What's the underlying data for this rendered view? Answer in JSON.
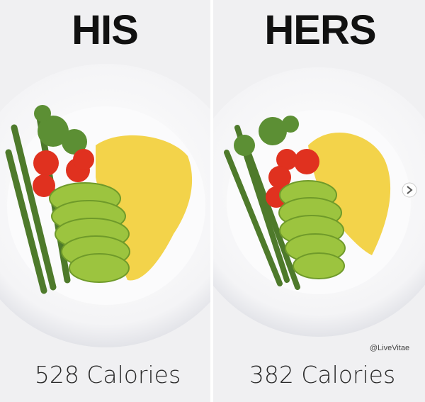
{
  "panels": [
    {
      "title": "HIS",
      "calories": "528 Calories"
    },
    {
      "title": "HERS",
      "calories": "382 Calories"
    }
  ],
  "watermark": "@LiveVitae"
}
